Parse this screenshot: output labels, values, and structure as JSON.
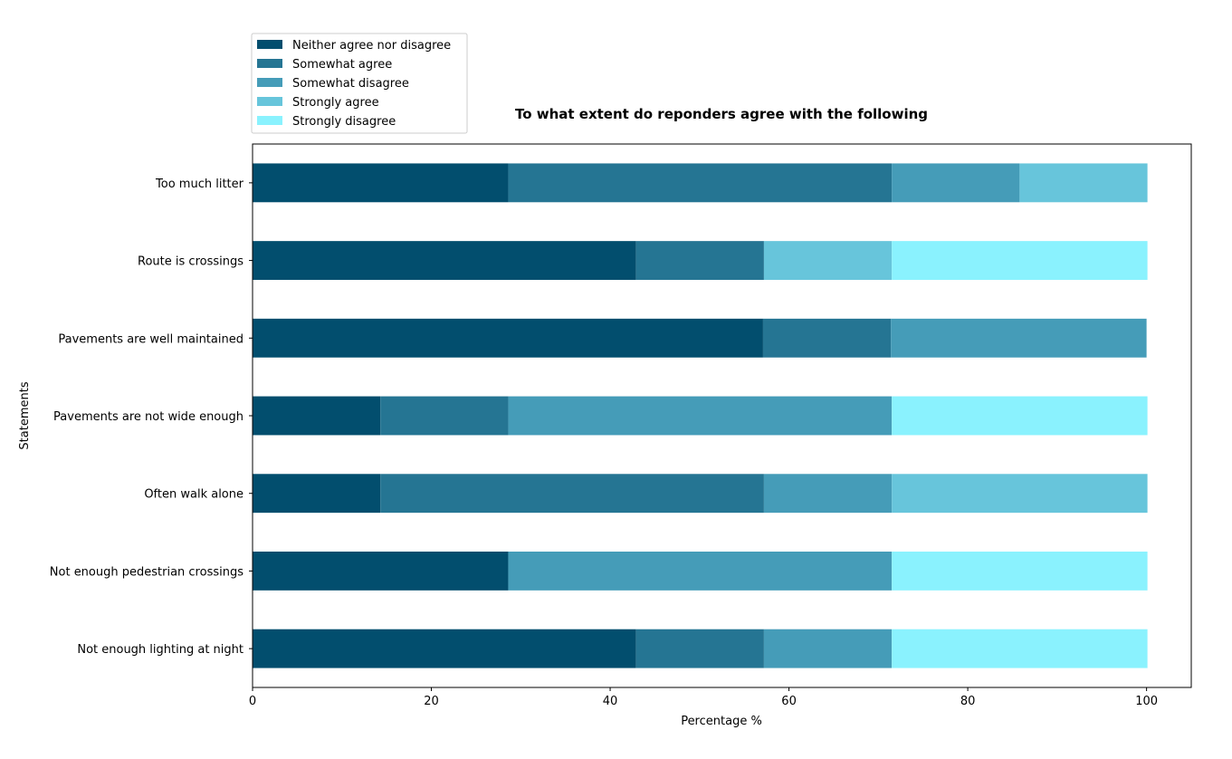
{
  "chart_data": {
    "type": "bar",
    "orientation": "horizontal",
    "stacked": true,
    "title": "To what extent do reponders agree with the following",
    "xlabel": "Percentage %",
    "ylabel": "Statements",
    "xlim": [
      0,
      105
    ],
    "xticks": [
      0,
      20,
      40,
      60,
      80,
      100
    ],
    "grid": false,
    "legend_position": "top-left, above plot",
    "categories": [
      "Not enough lighting at night",
      "Not enough pedestrian crossings",
      "Often walk alone",
      "Pavements are not wide enough",
      "Pavements are well maintained",
      "Route is crossings",
      "Too much litter"
    ],
    "series": [
      {
        "name": "Neither agree nor disagree",
        "color": "#024e6e",
        "values": [
          42.9,
          28.6,
          14.3,
          14.3,
          57.1,
          42.9,
          28.6
        ]
      },
      {
        "name": "Somewhat agree",
        "color": "#257593",
        "values": [
          14.3,
          0.0,
          42.9,
          14.3,
          14.3,
          14.3,
          42.9
        ]
      },
      {
        "name": "Somewhat disagree",
        "color": "#459cb8",
        "values": [
          14.3,
          42.9,
          14.3,
          42.9,
          28.6,
          0.0,
          14.3
        ]
      },
      {
        "name": "Strongly agree",
        "color": "#67c5db",
        "values": [
          0.0,
          0.0,
          28.6,
          0.0,
          0.0,
          14.3,
          14.3
        ]
      },
      {
        "name": "Strongly disagree",
        "color": "#8af2fe",
        "values": [
          28.6,
          28.6,
          0.0,
          28.6,
          0.0,
          28.6,
          0.0
        ]
      }
    ]
  }
}
